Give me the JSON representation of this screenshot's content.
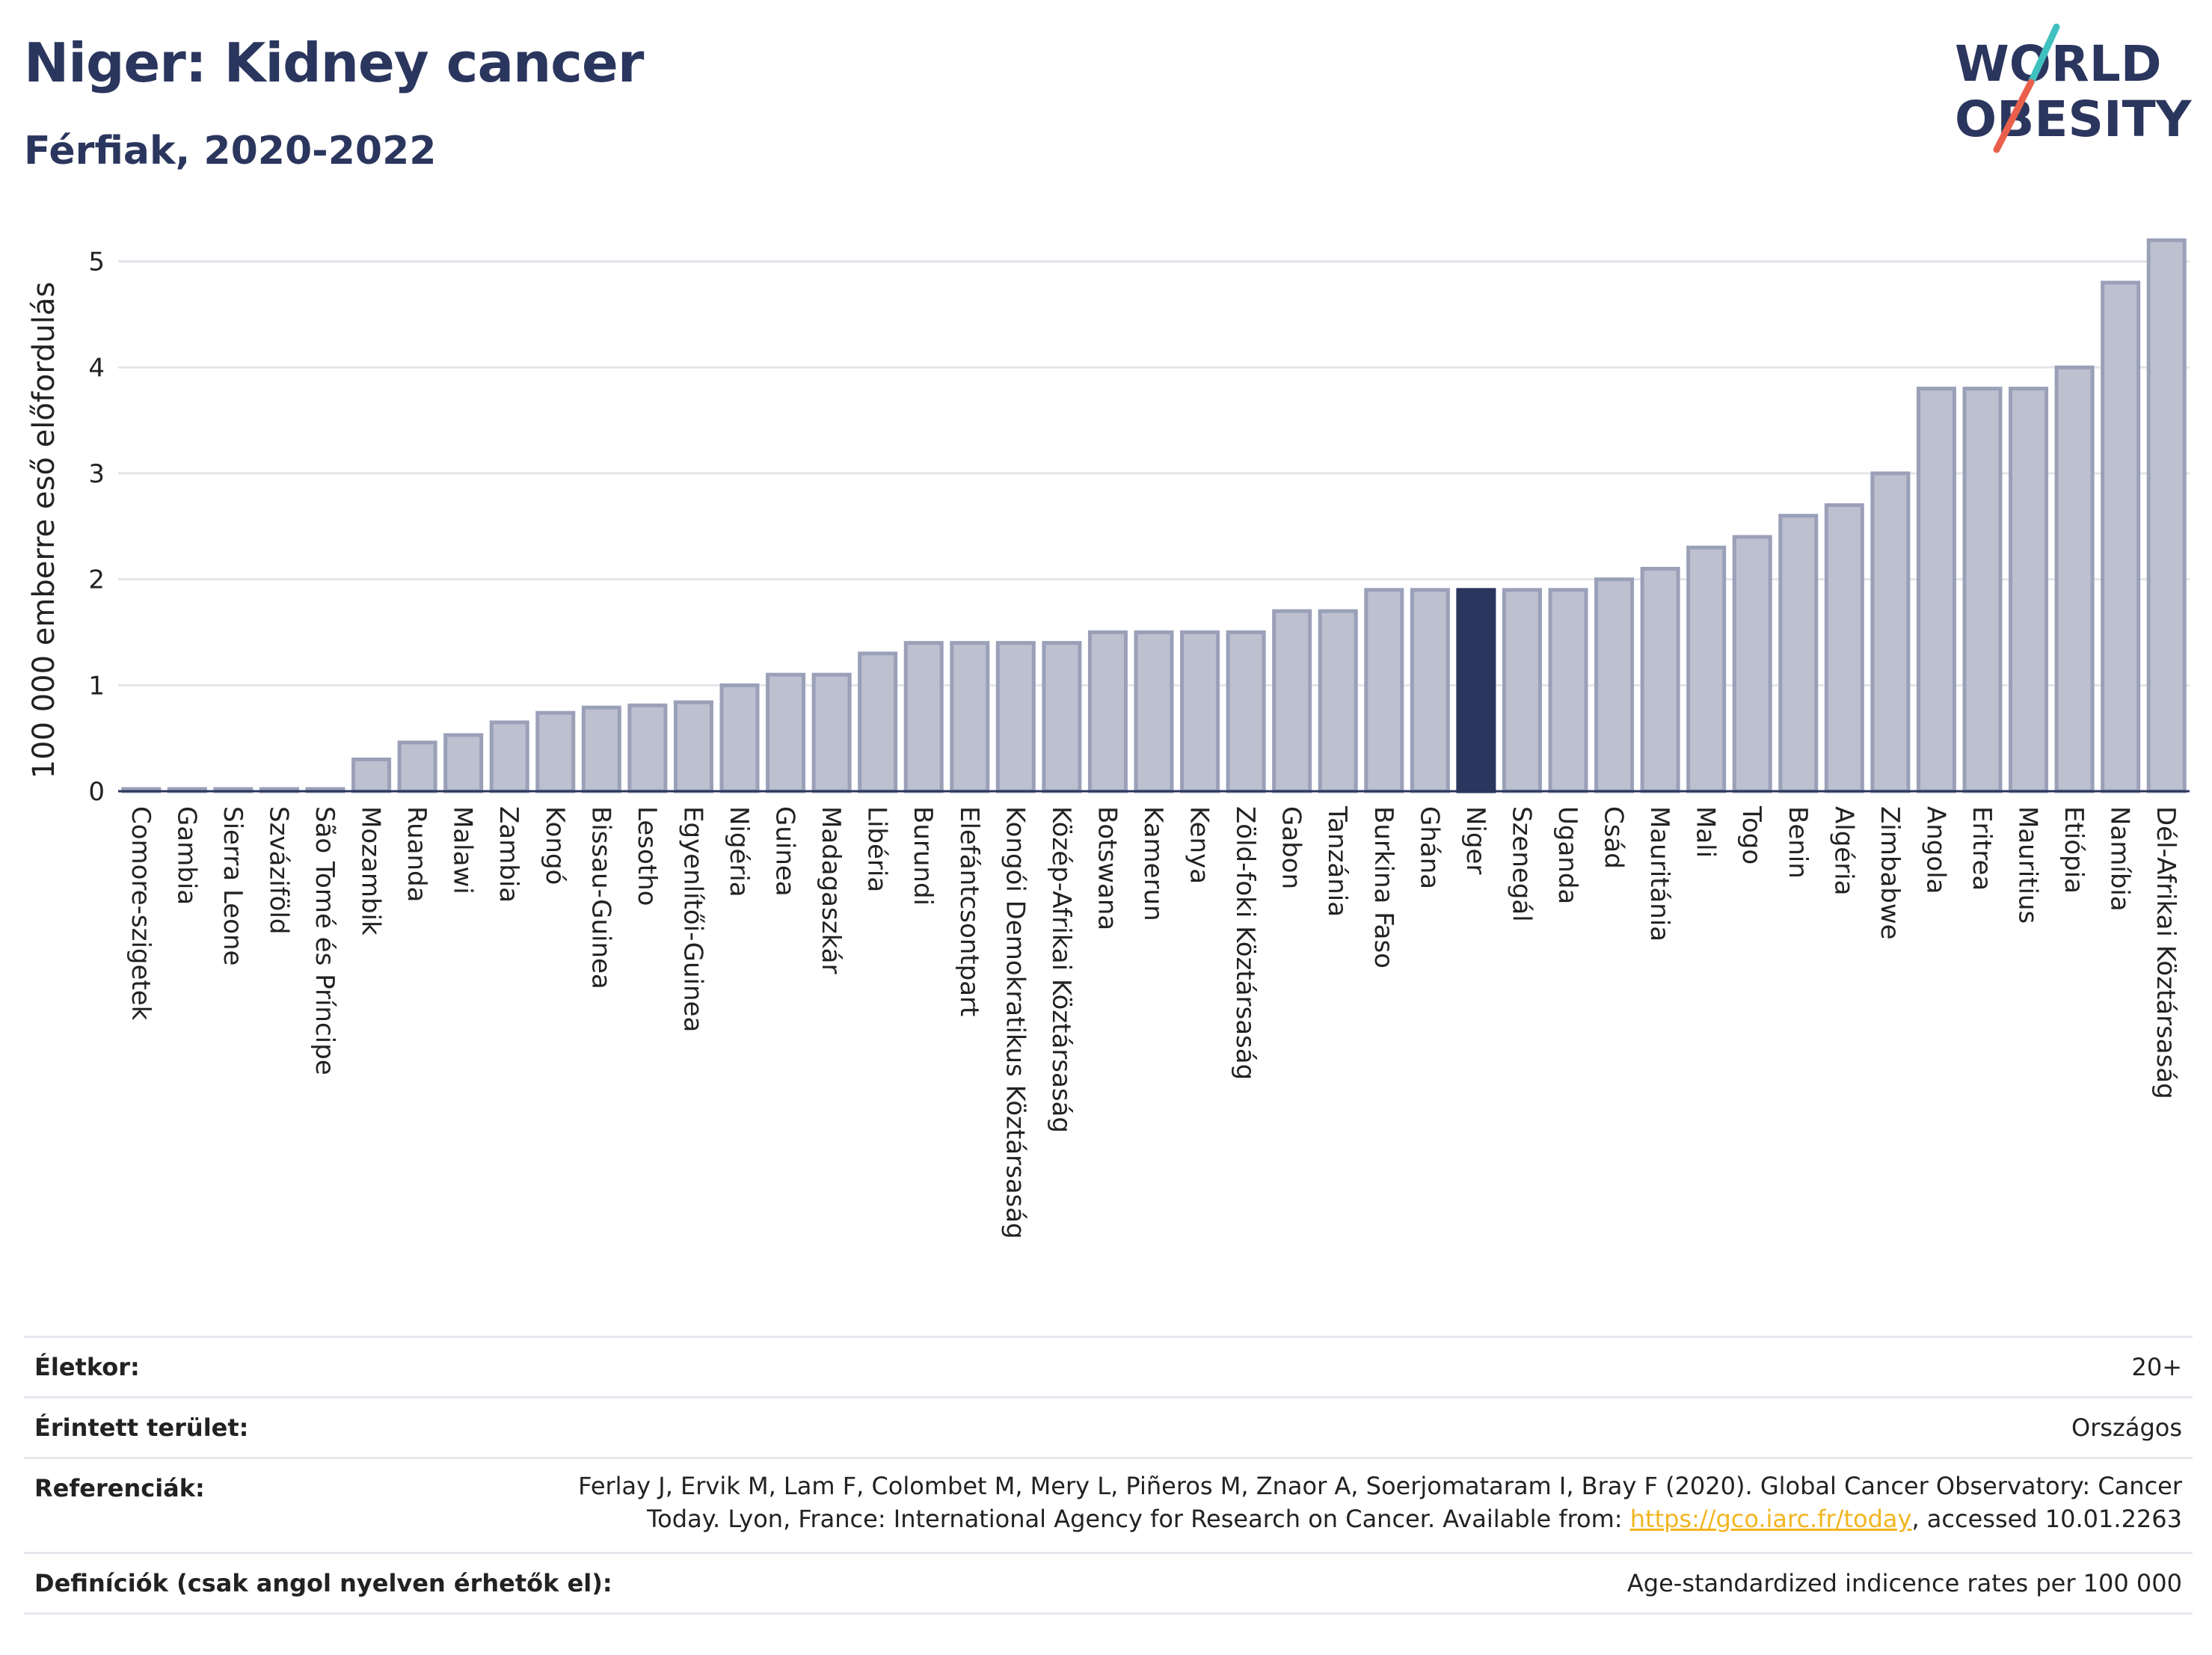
{
  "header": {
    "title": "Niger: Kidney cancer",
    "subtitle": "Férfiak, 2020-2022"
  },
  "logo": {
    "line1": "WORLD",
    "line2": "OBESITY",
    "colors": {
      "text": "#2b365e",
      "slash_top": "#3fc1c0",
      "slash_bottom": "#e8604c"
    }
  },
  "chart_data": {
    "type": "bar",
    "ylabel": "100 000 emberre eső előfordulás",
    "ylim": [
      0,
      5.35
    ],
    "yticks": [
      0,
      1,
      2,
      3,
      4,
      5
    ],
    "grid": true,
    "highlight": "Niger",
    "colors": {
      "bar": "#bcc0cf",
      "bar_edge": "#9aa0b8",
      "highlight": "#2b365e"
    },
    "categories": [
      "Comore-szigetek",
      "Gambia",
      "Sierra Leone",
      "Szváziföld",
      "São Tomé és Príncipe",
      "Mozambik",
      "Ruanda",
      "Malawi",
      "Zambia",
      "Kongó",
      "Bissau-Guinea",
      "Lesotho",
      "Egyenlítői-Guinea",
      "Nigéria",
      "Guinea",
      "Madagaszkár",
      "Libéria",
      "Burundi",
      "Elefántcsontpart",
      "Kongói Demokratikus Köztársaság",
      "Közép-Afrikai Köztársaság",
      "Botswana",
      "Kamerun",
      "Kenya",
      "Zöld-foki Köztársaság",
      "Gabon",
      "Tanzánia",
      "Burkina Faso",
      "Ghána",
      "Niger",
      "Szenegál",
      "Uganda",
      "Csád",
      "Mauritánia",
      "Mali",
      "Togo",
      "Benin",
      "Algéria",
      "Zimbabwe",
      "Angola",
      "Eritrea",
      "Mauritius",
      "Etiópia",
      "Namíbia",
      "Dél-Afrikai Köztársaság"
    ],
    "values": [
      0.0,
      0.0,
      0.0,
      0.0,
      0.0,
      0.3,
      0.46,
      0.53,
      0.65,
      0.74,
      0.79,
      0.81,
      0.84,
      1.0,
      1.1,
      1.1,
      1.3,
      1.4,
      1.4,
      1.4,
      1.4,
      1.5,
      1.5,
      1.5,
      1.5,
      1.7,
      1.7,
      1.9,
      1.9,
      1.9,
      1.9,
      1.9,
      2.0,
      2.1,
      2.3,
      2.4,
      2.6,
      2.7,
      3.0,
      3.8,
      3.8,
      3.8,
      4.0,
      4.8,
      5.2
    ]
  },
  "meta": [
    {
      "label": "Életkor:",
      "value": "20+"
    },
    {
      "label": "Érintett terület:",
      "value": "Országos"
    },
    {
      "label": "Referenciák:",
      "value_line1": "Ferlay J, Ervik M, Lam F, Colombet M, Mery L, Piñeros M, Znaor A, Soerjomataram I, Bray F (2020). Global Cancer Observatory: Cancer",
      "value_line2_pre": "Today. Lyon, France: International Agency for Research on Cancer. Available from: ",
      "link": "https://gco.iarc.fr/today",
      "value_line2_post": ", accessed 10.01.2263"
    },
    {
      "label": "Definíciók (csak angol nyelven érhetők el):",
      "value": "Age-standardized indicence rates per 100 000"
    }
  ]
}
